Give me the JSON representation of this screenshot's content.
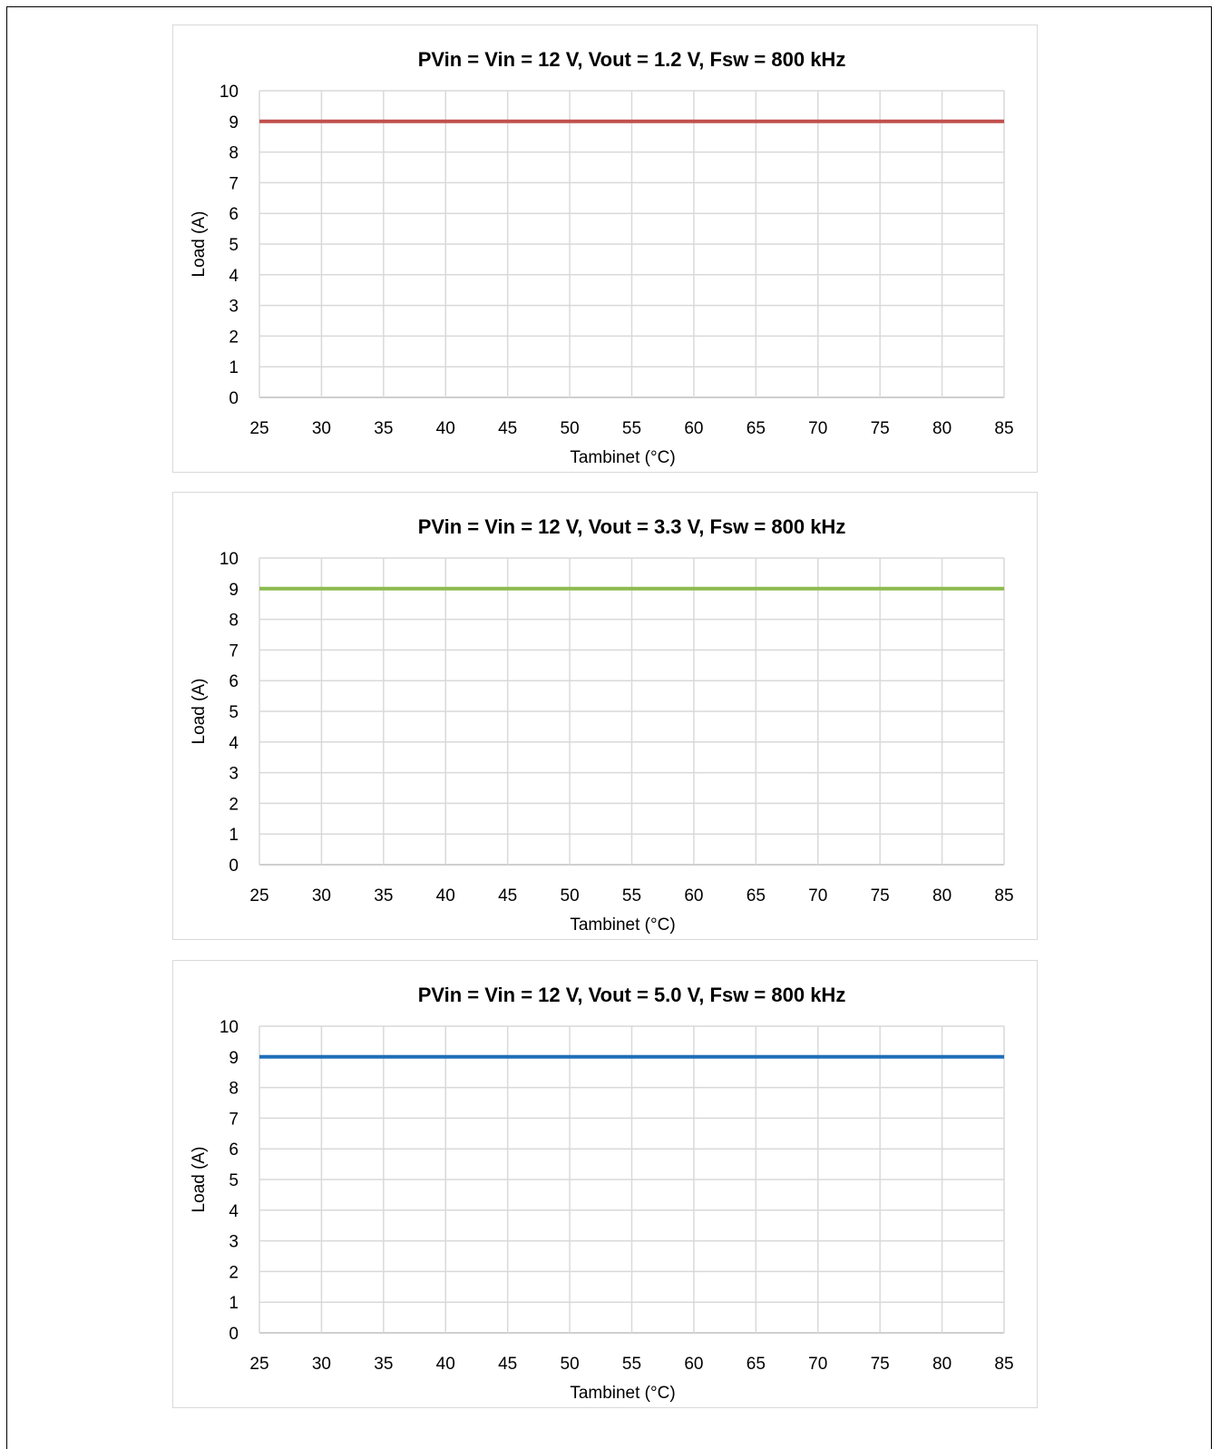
{
  "chart_data": [
    {
      "type": "line",
      "title": "PVin = Vin = 12 V, Vout = 1.2 V, Fsw = 800 kHz",
      "xlabel": "Tambinet (°C)",
      "ylabel": "Load (A)",
      "xlim": [
        25,
        85
      ],
      "ylim": [
        0,
        10
      ],
      "xticks": [
        "25",
        "30",
        "35",
        "40",
        "45",
        "50",
        "55",
        "60",
        "65",
        "70",
        "75",
        "80",
        "85"
      ],
      "yticks": [
        "0",
        "1",
        "2",
        "3",
        "4",
        "5",
        "6",
        "7",
        "8",
        "9",
        "10"
      ],
      "grid": true,
      "series": [
        {
          "color": "#c0504d",
          "x": [
            25,
            85
          ],
          "y": [
            9,
            9
          ]
        }
      ]
    },
    {
      "type": "line",
      "title": "PVin = Vin = 12 V, Vout = 3.3 V, Fsw = 800 kHz",
      "xlabel": "Tambinet (°C)",
      "ylabel": "Load (A)",
      "xlim": [
        25,
        85
      ],
      "ylim": [
        0,
        10
      ],
      "xticks": [
        "25",
        "30",
        "35",
        "40",
        "45",
        "50",
        "55",
        "60",
        "65",
        "70",
        "75",
        "80",
        "85"
      ],
      "yticks": [
        "0",
        "1",
        "2",
        "3",
        "4",
        "5",
        "6",
        "7",
        "8",
        "9",
        "10"
      ],
      "grid": true,
      "series": [
        {
          "color": "#8cba4f",
          "x": [
            25,
            85
          ],
          "y": [
            9,
            9
          ]
        }
      ]
    },
    {
      "type": "line",
      "title": "PVin = Vin = 12 V, Vout = 5.0 V, Fsw = 800 kHz",
      "xlabel": "Tambinet (°C)",
      "ylabel": "Load (A)",
      "xlim": [
        25,
        85
      ],
      "ylim": [
        0,
        10
      ],
      "xticks": [
        "25",
        "30",
        "35",
        "40",
        "45",
        "50",
        "55",
        "60",
        "65",
        "70",
        "75",
        "80",
        "85"
      ],
      "yticks": [
        "0",
        "1",
        "2",
        "3",
        "4",
        "5",
        "6",
        "7",
        "8",
        "9",
        "10"
      ],
      "grid": true,
      "series": [
        {
          "color": "#1f6fb9",
          "x": [
            25,
            85
          ],
          "y": [
            9,
            9
          ]
        }
      ]
    }
  ]
}
